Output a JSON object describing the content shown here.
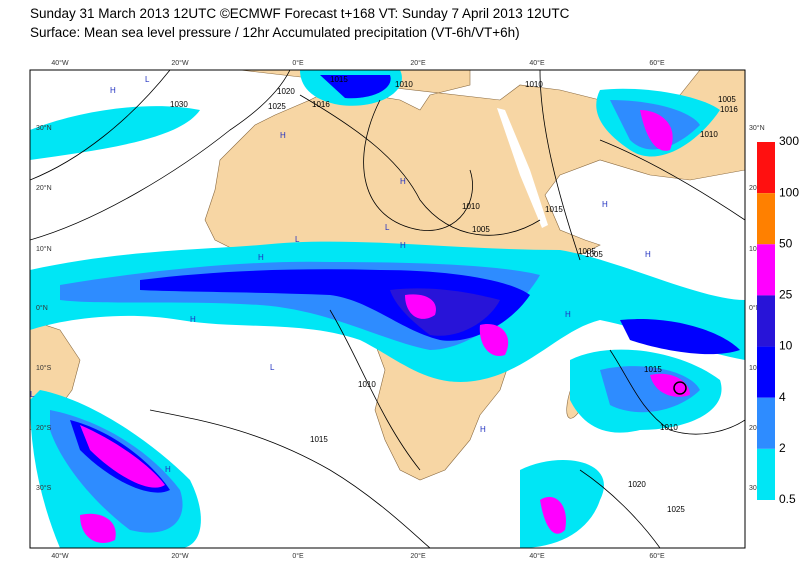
{
  "header": {
    "line1": "Sunday 31 March 2013 12UTC ©ECMWF Forecast t+168 VT: Sunday 7 April 2013 12UTC",
    "line2": "Surface: Mean sea level pressure / 12hr Accumulated precipitation (VT-6h/VT+6h)"
  },
  "map": {
    "lon_labels": [
      "40°W",
      "20°W",
      "0°E",
      "20°E",
      "40°E",
      "60°E"
    ],
    "lat_labels": [
      "30°N",
      "20°N",
      "10°N",
      "0°N",
      "10°S",
      "20°S",
      "30°S"
    ],
    "isobar_labels": [
      "1030",
      "1025",
      "1020",
      "1016",
      "1015",
      "1010",
      "1010",
      "1005",
      "1010",
      "1005",
      "1005",
      "1016",
      "1010",
      "1015",
      "1015",
      "1010",
      "1020",
      "1025",
      "1010",
      "1015",
      "1005"
    ],
    "pressure_centers": [
      "H",
      "H",
      "H",
      "H",
      "H",
      "H",
      "H",
      "H",
      "H",
      "H",
      "H",
      "L",
      "L",
      "L",
      "L",
      "L"
    ]
  },
  "legend": {
    "labels": [
      "300",
      "100",
      "50",
      "25",
      "10",
      "4",
      "2",
      "0.5"
    ],
    "colors": [
      "#ff1010",
      "#ff8000",
      "#ff00ff",
      "#2814d8",
      "#0000ff",
      "#2e8cff",
      "#00e6f5"
    ]
  }
}
